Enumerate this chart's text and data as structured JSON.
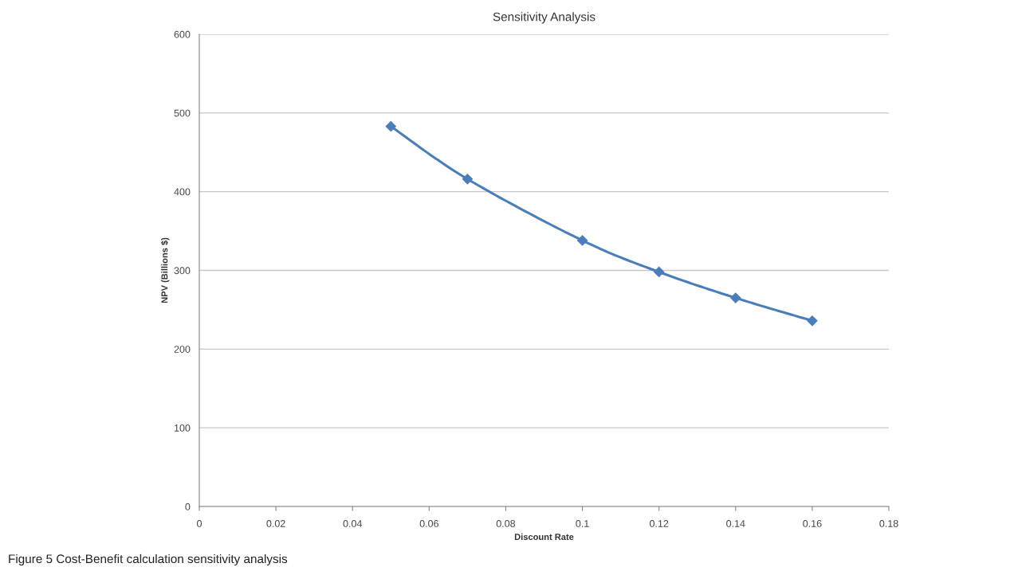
{
  "chart_data": {
    "type": "line",
    "title": "Sensitivity Analysis",
    "xlabel": "Discount Rate",
    "ylabel": "NPV (Billions $)",
    "x": [
      0.05,
      0.07,
      0.1,
      0.12,
      0.14,
      0.16
    ],
    "series": [
      {
        "color": "#4a7ebb",
        "values": [
          483,
          416,
          338,
          298,
          265,
          236
        ]
      }
    ],
    "xlim": [
      0,
      0.18
    ],
    "xticks": [
      0,
      0.02,
      0.04,
      0.06,
      0.08,
      0.1,
      0.12,
      0.14,
      0.16,
      0.18
    ],
    "ylim": [
      0,
      600
    ],
    "yticks": [
      0,
      100,
      200,
      300,
      400,
      500,
      600
    ],
    "grid": "y",
    "marker": "diamond",
    "line_style": "solid",
    "annotations": [
      "Figure 5 Cost-Benefit calculation sensitivity analysis"
    ]
  }
}
